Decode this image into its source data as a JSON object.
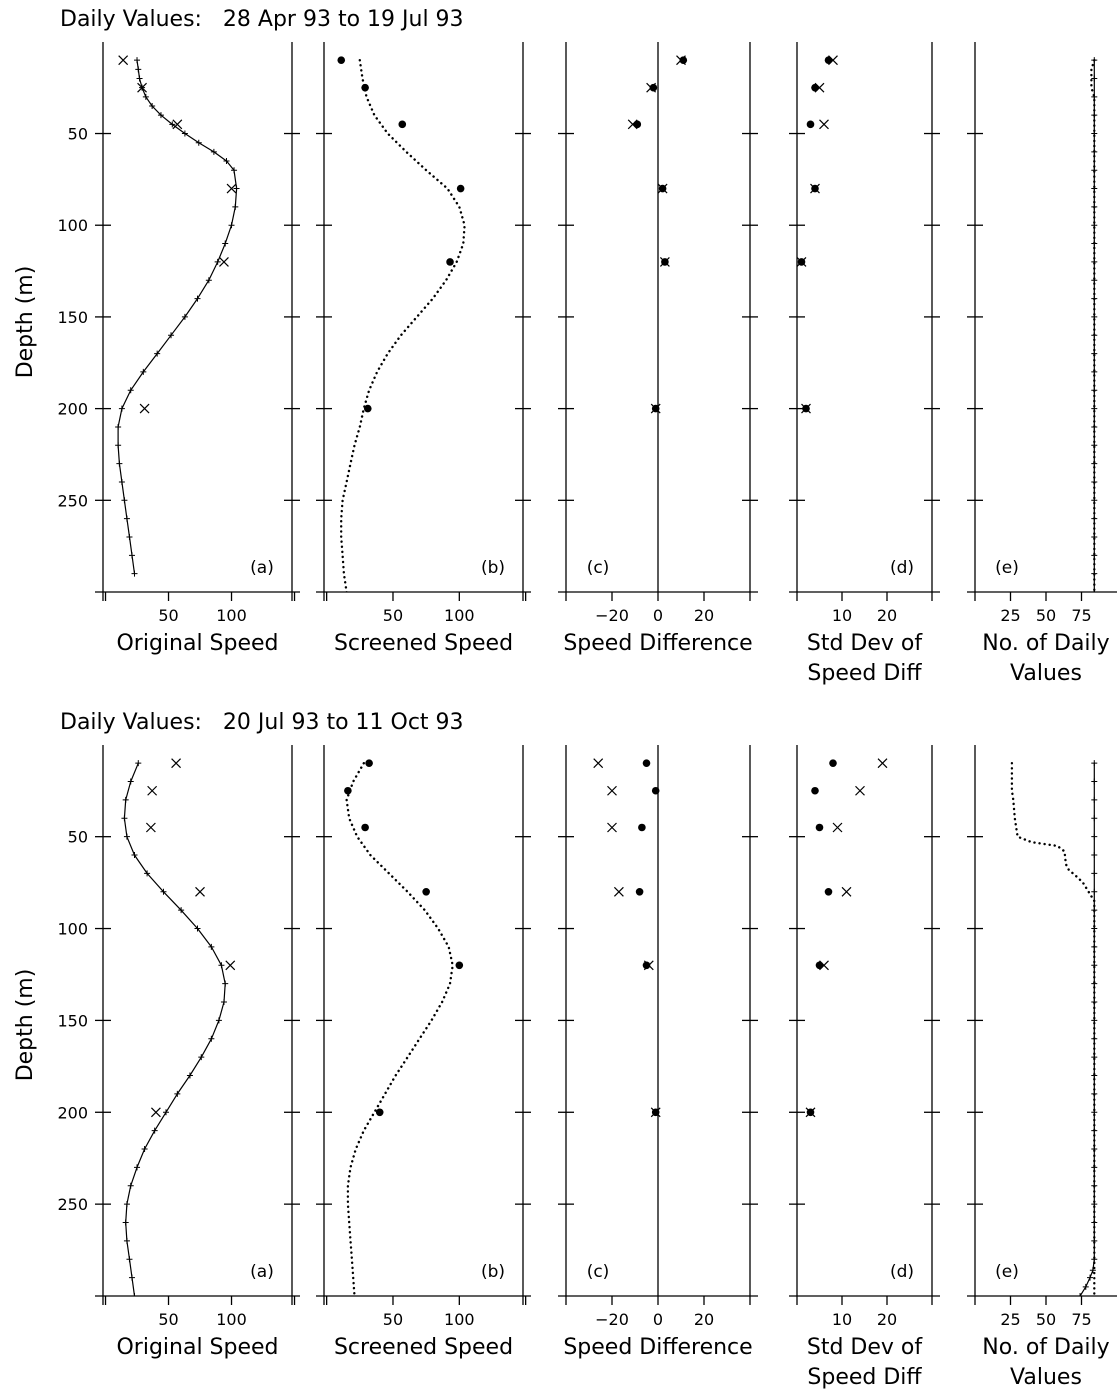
{
  "chart_data": [
    {
      "type": "scatter",
      "title": "Daily Values:   28 Apr 93 to 19 Jul 93",
      "ylabel": "Depth (m)",
      "ylim": [
        300,
        5
      ],
      "yticks": [
        50,
        100,
        150,
        200,
        250
      ],
      "panels": [
        {
          "label": "(a)",
          "xlabel": "Original Speed",
          "xlim": [
            -2,
            148
          ],
          "xticks": [
            50,
            100
          ],
          "xminor": [
            0,
            150
          ],
          "series": [
            {
              "name": "profile",
              "style": "line-plus",
              "x": [
                25,
                26,
                27,
                29,
                32,
                37,
                44,
                53,
                63,
                74,
                86,
                96,
                102,
                104,
                103,
                100,
                95,
                89,
                82,
                73,
                63,
                52,
                41,
                30,
                20,
                13,
                10,
                10,
                11,
                13,
                15,
                17,
                19,
                21,
                23
              ],
              "y": [
                10,
                15,
                20,
                25,
                30,
                35,
                40,
                45,
                50,
                55,
                60,
                65,
                70,
                80,
                90,
                100,
                110,
                120,
                130,
                140,
                150,
                160,
                170,
                180,
                190,
                200,
                210,
                220,
                230,
                240,
                250,
                260,
                270,
                280,
                290
              ]
            },
            {
              "name": "measured",
              "style": "x",
              "x": [
                14,
                29,
                57,
                100,
                94,
                31
              ],
              "y": [
                10,
                25,
                45,
                80,
                120,
                200
              ]
            }
          ]
        },
        {
          "label": "(b)",
          "xlabel": "Screened Speed",
          "xlim": [
            -2,
            148
          ],
          "xticks": [
            50,
            100
          ],
          "xminor": [
            0,
            150
          ],
          "series": [
            {
              "name": "profile",
              "style": "dotted",
              "x": [
                25,
                27,
                30,
                36,
                46,
                60,
                75,
                91,
                100,
                104,
                103,
                98,
                90,
                80,
                68,
                56,
                46,
                38,
                32,
                28,
                25,
                21,
                18,
                15,
                12,
                11,
                11,
                12,
                13,
                15,
                17,
                19
              ],
              "y": [
                10,
                20,
                30,
                40,
                50,
                60,
                70,
                80,
                90,
                100,
                110,
                120,
                130,
                140,
                150,
                160,
                170,
                180,
                190,
                200,
                210,
                220,
                230,
                240,
                250,
                260,
                270,
                280,
                290,
                300,
                310,
                320
              ]
            },
            {
              "name": "screened",
              "style": "dot",
              "x": [
                11,
                29,
                57,
                101,
                93,
                31
              ],
              "y": [
                10,
                25,
                45,
                80,
                120,
                200
              ]
            }
          ]
        },
        {
          "label": "(c)",
          "xlabel": "Speed Difference",
          "xlim": [
            -40,
            40
          ],
          "xticks": [
            -20,
            0,
            20
          ],
          "zero_line": true,
          "series": [
            {
              "name": "x",
              "style": "x",
              "x": [
                10,
                -3,
                -11,
                2,
                3,
                -1
              ],
              "y": [
                10,
                25,
                45,
                80,
                120,
                200
              ]
            },
            {
              "name": "dot",
              "style": "dot",
              "x": [
                11,
                -2,
                -9,
                2,
                3,
                -1
              ],
              "y": [
                10,
                25,
                45,
                80,
                120,
                200
              ]
            }
          ]
        },
        {
          "label": "(d)",
          "xlabel": "Std Dev of",
          "xlabel2": "Speed Diff",
          "xlim": [
            0,
            30
          ],
          "xticks": [
            10,
            20
          ],
          "series": [
            {
              "name": "x",
              "style": "x",
              "x": [
                8,
                5,
                6,
                4,
                1,
                2
              ],
              "y": [
                10,
                25,
                45,
                80,
                120,
                200
              ]
            },
            {
              "name": "dot",
              "style": "dot",
              "x": [
                7,
                4,
                3,
                4,
                1,
                2
              ],
              "y": [
                10,
                25,
                45,
                80,
                120,
                200
              ]
            }
          ]
        },
        {
          "label": "(e)",
          "xlabel": "No. of Daily",
          "xlabel2": "Values",
          "xlim": [
            0,
            100
          ],
          "xticks": [
            25,
            50,
            75
          ],
          "series": [
            {
              "name": "solid",
              "style": "line-plus",
              "x": [
                84,
                84,
                84,
                84,
                84,
                84,
                84,
                84,
                84,
                84,
                84,
                84,
                84,
                84,
                84,
                84,
                84,
                84,
                84,
                84,
                84,
                84,
                84,
                84,
                84,
                84,
                84,
                84,
                84,
                84
              ],
              "y": [
                10,
                20,
                30,
                40,
                50,
                60,
                70,
                80,
                90,
                100,
                110,
                120,
                130,
                140,
                150,
                160,
                170,
                180,
                190,
                200,
                210,
                220,
                230,
                240,
                250,
                260,
                270,
                280,
                290,
                300
              ]
            },
            {
              "name": "dotted",
              "style": "dotted",
              "x": [
                84,
                82,
                82,
                84,
                84,
                84
              ],
              "y": [
                10,
                15,
                25,
                30,
                100,
                300
              ]
            }
          ]
        }
      ]
    },
    {
      "type": "scatter",
      "title": "Daily Values:   20 Jul 93 to 11 Oct 93",
      "ylabel": "Depth (m)",
      "ylim": [
        300,
        5
      ],
      "yticks": [
        50,
        100,
        150,
        200,
        250
      ],
      "panels": [
        {
          "label": "(a)",
          "xlabel": "Original Speed",
          "xlim": [
            -2,
            148
          ],
          "xticks": [
            50,
            100
          ],
          "xminor": [
            0,
            150
          ],
          "series": [
            {
              "name": "profile",
              "style": "line-plus",
              "x": [
                26,
                20,
                16,
                15,
                17,
                23,
                33,
                46,
                60,
                73,
                84,
                92,
                95,
                94,
                90,
                84,
                76,
                67,
                57,
                48,
                39,
                31,
                25,
                20,
                17,
                16,
                17,
                19,
                21,
                23,
                25
              ],
              "y": [
                10,
                20,
                30,
                40,
                50,
                60,
                70,
                80,
                90,
                100,
                110,
                120,
                130,
                140,
                150,
                160,
                170,
                180,
                190,
                200,
                210,
                220,
                230,
                240,
                250,
                260,
                270,
                280,
                290,
                300,
                310
              ]
            },
            {
              "name": "measured",
              "style": "x",
              "x": [
                56,
                37,
                36,
                75,
                99,
                40
              ],
              "y": [
                10,
                25,
                45,
                80,
                120,
                200
              ]
            }
          ]
        },
        {
          "label": "(b)",
          "xlabel": "Screened Speed",
          "xlim": [
            -2,
            148
          ],
          "xticks": [
            50,
            100
          ],
          "xminor": [
            0,
            150
          ],
          "series": [
            {
              "name": "profile",
              "style": "dotted",
              "x": [
                28,
                20,
                15,
                17,
                23,
                33,
                47,
                61,
                74,
                84,
                92,
                95,
                93,
                87,
                79,
                70,
                61,
                52,
                44,
                36,
                28,
                22,
                18,
                16,
                16,
                17,
                18,
                19,
                20,
                21,
                22
              ],
              "y": [
                10,
                20,
                30,
                40,
                50,
                60,
                70,
                80,
                90,
                100,
                110,
                120,
                130,
                140,
                150,
                160,
                170,
                180,
                190,
                200,
                210,
                220,
                230,
                240,
                250,
                260,
                270,
                280,
                290,
                300,
                310
              ]
            },
            {
              "name": "screened",
              "style": "dot",
              "x": [
                32,
                16,
                29,
                75,
                100,
                40
              ],
              "y": [
                10,
                25,
                45,
                80,
                120,
                200
              ]
            }
          ]
        },
        {
          "label": "(c)",
          "xlabel": "Speed Difference",
          "xlim": [
            -40,
            40
          ],
          "xticks": [
            -20,
            0,
            20
          ],
          "zero_line": true,
          "series": [
            {
              "name": "x",
              "style": "x",
              "x": [
                -26,
                -20,
                -20,
                -17,
                -4,
                -1
              ],
              "y": [
                10,
                25,
                45,
                80,
                120,
                200
              ]
            },
            {
              "name": "dot",
              "style": "dot",
              "x": [
                -5,
                -1,
                -7,
                -8,
                -5,
                -1
              ],
              "y": [
                10,
                25,
                45,
                80,
                120,
                200
              ]
            }
          ]
        },
        {
          "label": "(d)",
          "xlabel": "Std Dev of",
          "xlabel2": "Speed Diff",
          "xlim": [
            0,
            30
          ],
          "xticks": [
            10,
            20
          ],
          "series": [
            {
              "name": "x",
              "style": "x",
              "x": [
                19,
                14,
                9,
                11,
                6,
                3
              ],
              "y": [
                10,
                25,
                45,
                80,
                120,
                200
              ]
            },
            {
              "name": "dot",
              "style": "dot",
              "x": [
                8,
                4,
                5,
                7,
                5,
                3
              ],
              "y": [
                10,
                25,
                45,
                80,
                120,
                200
              ]
            }
          ]
        },
        {
          "label": "(e)",
          "xlabel": "No. of Daily",
          "xlabel2": "Values",
          "xlim": [
            0,
            100
          ],
          "xticks": [
            25,
            50,
            75
          ],
          "series": [
            {
              "name": "solid",
              "style": "line-plus",
              "x": [
                84,
                84,
                84,
                84,
                84,
                84,
                84,
                84,
                84,
                84,
                84,
                84,
                84,
                84,
                84,
                84,
                84,
                84,
                84,
                84,
                84,
                84,
                84,
                84,
                84,
                84,
                84,
                84,
                83,
                81,
                78,
                74
              ],
              "y": [
                10,
                20,
                30,
                40,
                50,
                60,
                70,
                80,
                90,
                100,
                110,
                120,
                130,
                140,
                150,
                160,
                170,
                180,
                190,
                200,
                210,
                220,
                230,
                240,
                250,
                260,
                270,
                280,
                286,
                290,
                295,
                300
              ]
            },
            {
              "name": "dotted",
              "style": "dotted",
              "x": [
                26,
                26,
                27,
                28,
                30,
                40,
                58,
                63,
                64,
                66,
                72,
                76,
                84,
                84
              ],
              "y": [
                10,
                25,
                30,
                40,
                50,
                53,
                55,
                58,
                65,
                68,
                72,
                75,
                85,
                300
              ]
            }
          ]
        }
      ]
    }
  ]
}
